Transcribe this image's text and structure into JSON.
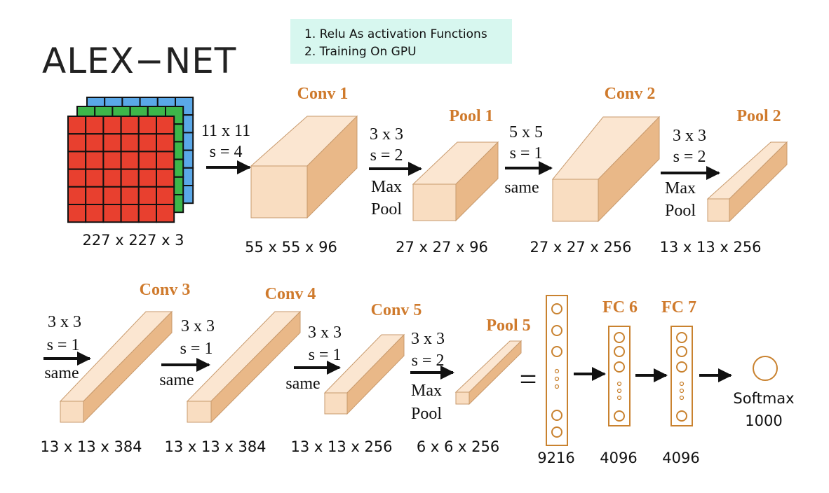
{
  "title": "ALEX−NET",
  "notes": [
    "1. Relu As activation Functions",
    "2. Training On GPU"
  ],
  "input": {
    "dims": "227 x 227 x 3"
  },
  "row1": {
    "ops": [
      {
        "kernel": "11 x 11",
        "stride": "s = 4",
        "extra": []
      },
      {
        "kernel": "3 x 3",
        "stride": "s = 2",
        "extra": [
          "Max",
          "Pool"
        ]
      },
      {
        "kernel": "5 x 5",
        "stride": "s = 1",
        "extra": [
          "same"
        ]
      },
      {
        "kernel": "3 x 3",
        "stride": "s = 2",
        "extra": [
          "Max",
          "Pool"
        ]
      }
    ],
    "layers": [
      {
        "name": "Conv 1",
        "dims": "55 x 55 x 96"
      },
      {
        "name": "Pool 1",
        "dims": "27 x 27 x 96"
      },
      {
        "name": "Conv 2",
        "dims": "27 x 27 x 256"
      },
      {
        "name": "Pool 2",
        "dims": "13 x 13 x 256"
      }
    ]
  },
  "row2": {
    "ops": [
      {
        "kernel": "3 x 3",
        "stride": "s = 1",
        "extra": [
          "same"
        ]
      },
      {
        "kernel": "3 x 3",
        "stride": "s = 1",
        "extra": [
          "same"
        ]
      },
      {
        "kernel": "3 x 3",
        "stride": "s = 1",
        "extra": [
          "same"
        ]
      },
      {
        "kernel": "3 x 3",
        "stride": "s = 2",
        "extra": [
          "Max",
          "Pool"
        ]
      }
    ],
    "layers": [
      {
        "name": "Conv 3",
        "dims": "13 x 13 x 384"
      },
      {
        "name": "Conv 4",
        "dims": "13 x 13 x 384"
      },
      {
        "name": "Conv 5",
        "dims": "13 x 13 x 256"
      },
      {
        "name": "Pool 5",
        "dims": "6 x 6 x 256"
      }
    ]
  },
  "equals": "=",
  "fc": [
    {
      "name": "",
      "size": "9216"
    },
    {
      "name": "FC 6",
      "size": "4096"
    },
    {
      "name": "FC 7",
      "size": "4096"
    }
  ],
  "output": {
    "name": "Softmax",
    "size": "1000"
  },
  "colors": {
    "grid_red": "#e8402f",
    "grid_green": "#3db64a",
    "grid_blue": "#5aa8e8",
    "label_orange": "#cf7a2c",
    "note_bg": "#d7f7ef"
  }
}
